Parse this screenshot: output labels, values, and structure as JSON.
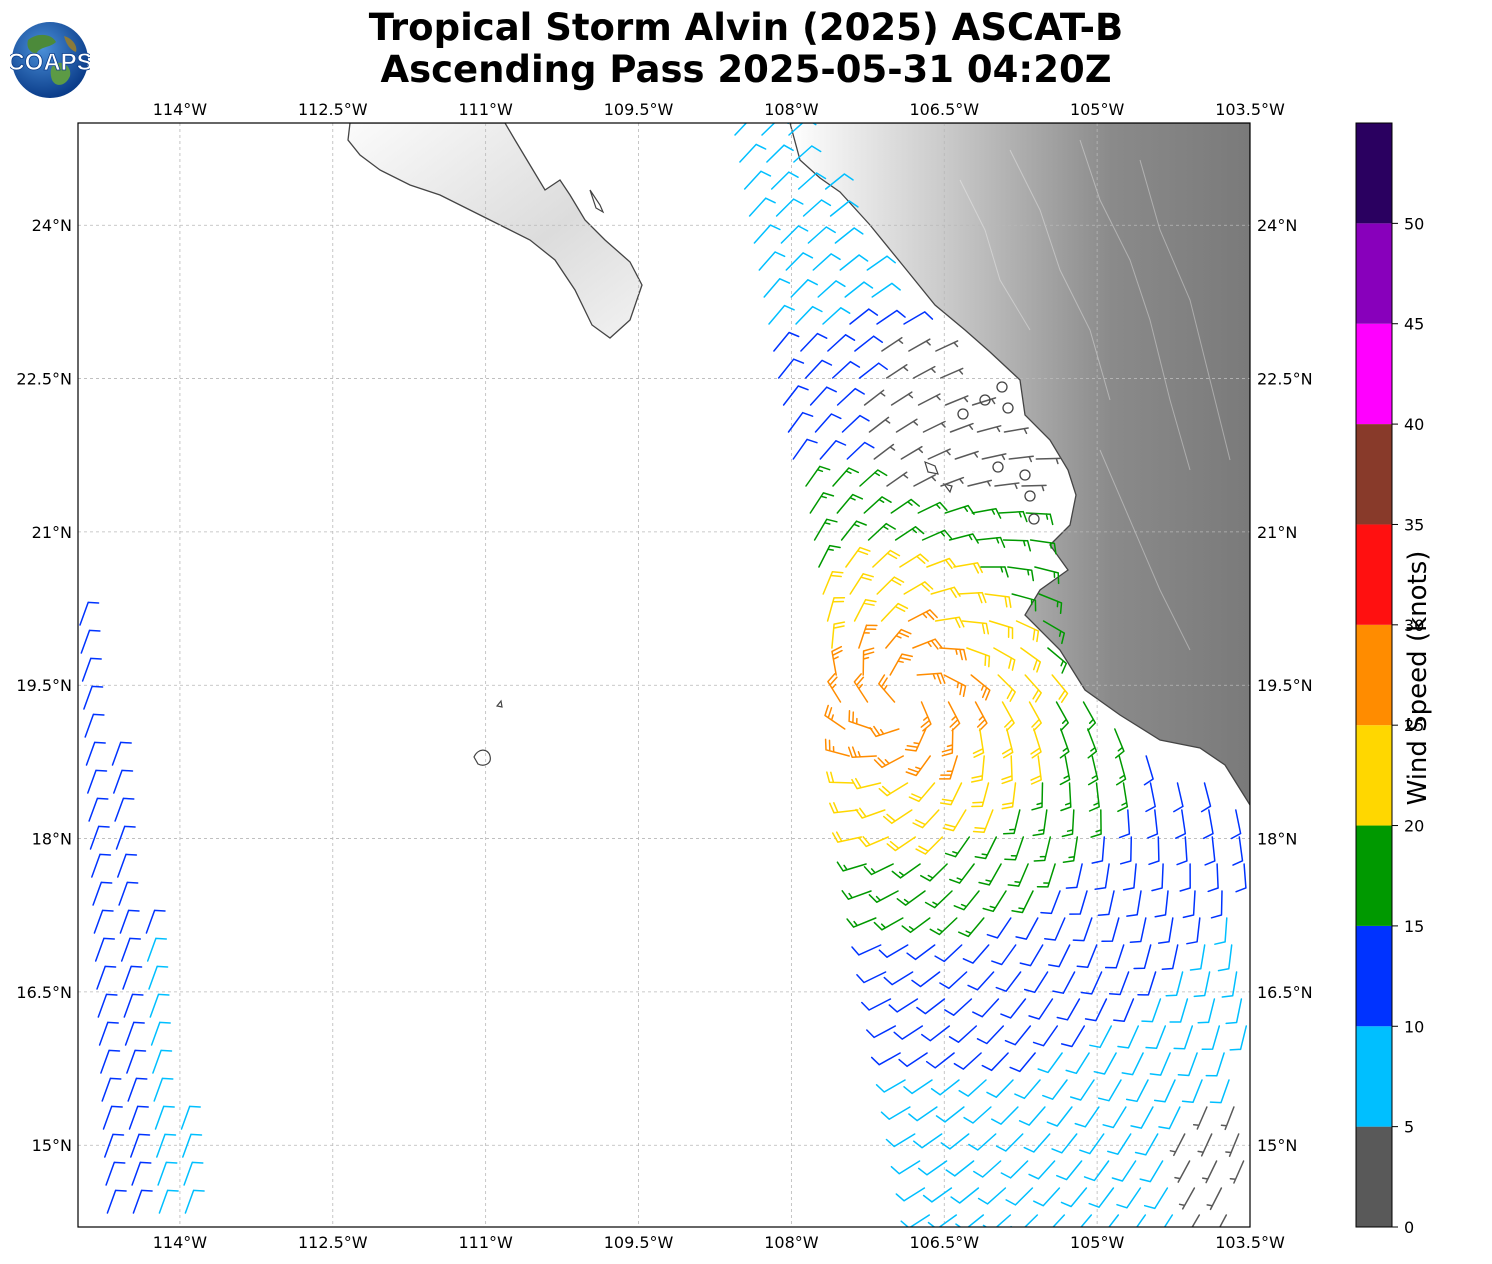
{
  "title": {
    "line1": "Tropical Storm Alvin (2025) ASCAT-B",
    "line2": "Ascending Pass 2025-05-31 04:20Z"
  },
  "logo": {
    "text": "COAPS",
    "icon": "globe-logo-icon"
  },
  "map": {
    "lon_range": [
      -115.0,
      -103.5
    ],
    "lat_range": [
      14.2,
      25.0
    ],
    "lon_ticks": [
      {
        "value": -114.0,
        "label": "114°W"
      },
      {
        "value": -112.5,
        "label": "112.5°W"
      },
      {
        "value": -111.0,
        "label": "111°W"
      },
      {
        "value": -109.5,
        "label": "109.5°W"
      },
      {
        "value": -108.0,
        "label": "108°W"
      },
      {
        "value": -106.5,
        "label": "106.5°W"
      },
      {
        "value": -105.0,
        "label": "105°W"
      },
      {
        "value": -103.5,
        "label": "103.5°W"
      }
    ],
    "lat_ticks": [
      {
        "value": 24.0,
        "label": "24°N"
      },
      {
        "value": 22.5,
        "label": "22.5°N"
      },
      {
        "value": 21.0,
        "label": "21°N"
      },
      {
        "value": 19.5,
        "label": "19.5°N"
      },
      {
        "value": 18.0,
        "label": "18°N"
      },
      {
        "value": 16.5,
        "label": "16.5°N"
      },
      {
        "value": 15.0,
        "label": "15°N"
      }
    ],
    "grid": true,
    "coastline_color": "#444444",
    "terrain": "grayscale"
  },
  "colorbar": {
    "label": "Wind Speed (knots)",
    "bins": [
      {
        "min": 0,
        "max": 5,
        "color": "#595959"
      },
      {
        "min": 5,
        "max": 10,
        "color": "#00bfff"
      },
      {
        "min": 10,
        "max": 15,
        "color": "#0033ff"
      },
      {
        "min": 15,
        "max": 20,
        "color": "#009900"
      },
      {
        "min": 20,
        "max": 25,
        "color": "#ffd700"
      },
      {
        "min": 25,
        "max": 30,
        "color": "#ff8c00"
      },
      {
        "min": 30,
        "max": 35,
        "color": "#ff1010"
      },
      {
        "min": 35,
        "max": 40,
        "color": "#883a2a"
      },
      {
        "min": 40,
        "max": 45,
        "color": "#ff00ff"
      },
      {
        "min": 45,
        "max": 50,
        "color": "#8800bb"
      },
      {
        "min": 50,
        "max": 55,
        "color": "#2a0060"
      }
    ],
    "ticks": [
      "0",
      "5",
      "10",
      "15",
      "20",
      "25",
      "30",
      "35",
      "40",
      "45",
      "50"
    ]
  },
  "swaths": {
    "west": {
      "lon_edges": [
        [
          -114.9,
          -114.1
        ],
        [
          -114.5,
          -113.2
        ]
      ],
      "lat_range": [
        14.2,
        20.2
      ],
      "direction_deg": 20
    },
    "east": {
      "lon_west_edge": [
        -106.8,
        -108.1
      ],
      "lat_range": [
        14.2,
        24.9
      ]
    }
  }
}
